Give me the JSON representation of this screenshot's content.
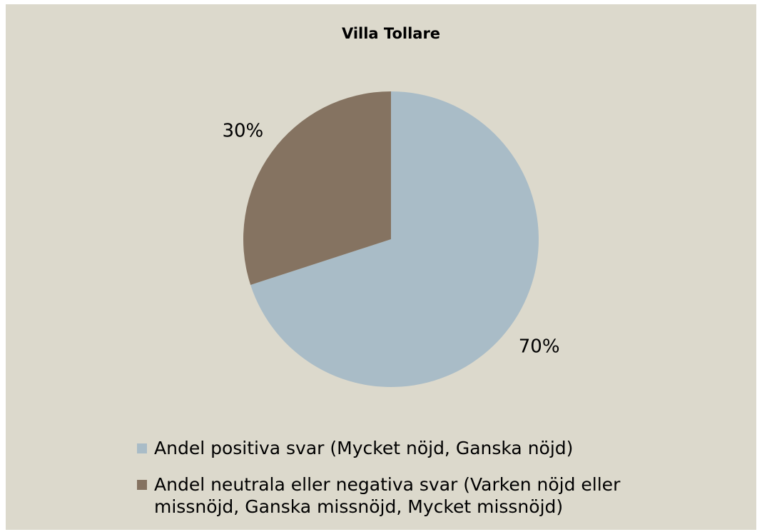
{
  "chart_data": {
    "type": "pie",
    "title": "Villa Tollare",
    "categories": [
      "Andel positiva svar (Mycket nöjd, Ganska nöjd)",
      "Andel neutrala eller negativa svar (Varken nöjd eller missnöjd, Ganska missnöjd, Mycket missnöjd)"
    ],
    "values": [
      70,
      30
    ],
    "value_labels": [
      "70%",
      "30%"
    ],
    "colors": [
      "#a9bcc7",
      "#857361"
    ],
    "legend": "bottom"
  }
}
